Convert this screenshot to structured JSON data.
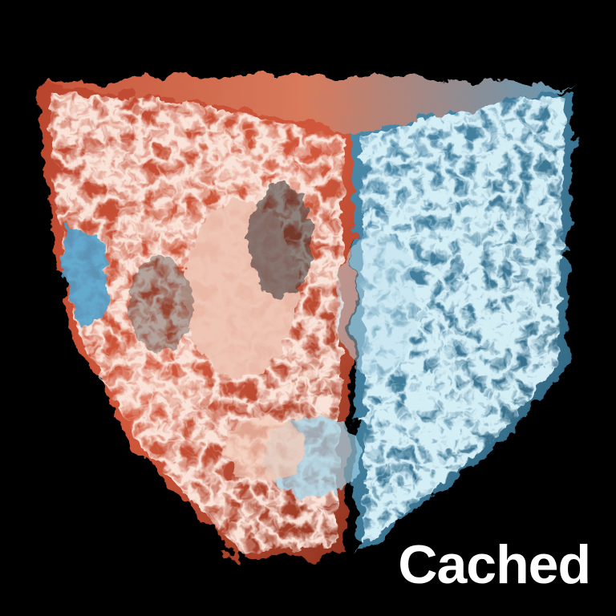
{
  "caption": "Cached",
  "colors": {
    "background": "#000000",
    "warm": "#c8472f",
    "warm_light": "#f2c2ad",
    "cool": "#3f7a99",
    "cool_light": "#a9d8ea",
    "caption": "#ffffff"
  }
}
